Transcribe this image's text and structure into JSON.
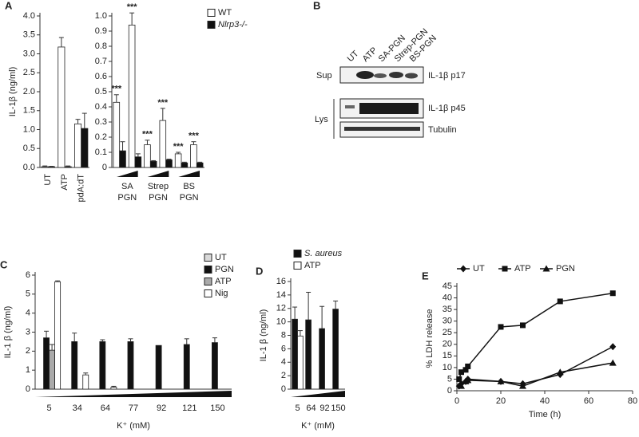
{
  "chart_data": [
    {
      "type": "bar",
      "label": "A",
      "ylabel": "IL-1β (ng/ml)",
      "categories": [
        "UT",
        "ATP",
        "pdA:dT"
      ],
      "xtick_rotation": -90,
      "series": [
        {
          "name": "WT",
          "color": "#ffffff",
          "values": [
            0.02,
            3.18,
            1.15
          ],
          "errors": [
            0.02,
            0.25,
            0.12
          ]
        },
        {
          "name": "Nlrp3-/-",
          "color": "#111111",
          "values": [
            0.02,
            0.02,
            1.03
          ],
          "errors": [
            0.01,
            0.02,
            0.4
          ]
        }
      ],
      "ylim": [
        0,
        4
      ],
      "yticks": [
        {
          "value": 0,
          "label": "0.0"
        },
        0.5,
        {
          "value": 1,
          "label": "1.0"
        },
        1.5,
        {
          "value": 2,
          "label": "2.0"
        },
        2.5,
        {
          "value": 3,
          "label": "3.0"
        },
        3.5,
        {
          "value": 4,
          "label": "4.0"
        }
      ]
    },
    {
      "type": "bar",
      "categories": [
        null,
        null,
        null,
        null,
        null,
        null
      ],
      "group_labels": [
        [
          "SA",
          "PGN"
        ],
        [
          "Strep",
          "PGN"
        ],
        [
          "BS",
          "PGN"
        ]
      ],
      "annotations": [
        "***",
        "***",
        "***",
        "***",
        "***",
        "***"
      ],
      "series": [
        {
          "name": "WT",
          "color": "#ffffff",
          "values": [
            0.43,
            0.94,
            0.15,
            0.31,
            0.09,
            0.15
          ],
          "errors": [
            0.05,
            0.08,
            0.03,
            0.08,
            0.01,
            0.02
          ]
        },
        {
          "name": "Nlrp3-/-",
          "color": "#111111",
          "values": [
            0.11,
            0.07,
            0.04,
            0.05,
            0.03,
            0.03
          ],
          "errors": [
            0.06,
            0.02,
            0.005,
            0.005,
            0.005,
            0.005
          ]
        }
      ],
      "ylim": [
        0,
        1
      ],
      "yticks": [
        0,
        0.1,
        0.2,
        0.3,
        0.4,
        0.5,
        0.6,
        0.7,
        0.8,
        0.9,
        {
          "value": 1,
          "label": "1.0"
        }
      ]
    },
    {
      "type": "bar",
      "label": "C",
      "ylabel": "IL-1 β (ng/ml)",
      "xlabel": "K⁺ (mM)",
      "categories": [
        "5",
        "34",
        "64",
        "77",
        "92",
        "121",
        "150"
      ],
      "series": [
        {
          "name": "UT",
          "color": "#d9d9d9",
          "values": [
            0,
            0,
            0,
            0,
            0,
            0,
            0
          ],
          "errors": [
            null,
            null,
            null,
            null,
            null,
            null,
            null
          ]
        },
        {
          "name": "PGN",
          "color": "#111111",
          "values": [
            2.7,
            2.5,
            2.5,
            2.5,
            2.3,
            2.35,
            2.45
          ],
          "errors": [
            0.35,
            0.45,
            0.1,
            0.15,
            null,
            0.3,
            0.25
          ]
        },
        {
          "name": "ATP",
          "color": "#aaaaaa",
          "values": [
            2.05,
            null,
            null,
            null,
            null,
            null,
            null
          ],
          "errors": [
            0.3,
            null,
            null,
            null,
            null,
            null,
            null
          ]
        },
        {
          "name": "Nig",
          "color": "#ffffff",
          "values": [
            5.65,
            0.75,
            0.1,
            null,
            null,
            null,
            null
          ],
          "errors": [
            0.05,
            0.1,
            0.05,
            null,
            null,
            null,
            null
          ]
        }
      ],
      "ylim": [
        0,
        6
      ],
      "yticks": [
        0,
        1,
        2,
        3,
        4,
        5,
        6
      ]
    },
    {
      "type": "bar",
      "label": "D",
      "ylabel": "IL-1 β (ng/ml)",
      "xlabel": "K⁺ (mM)",
      "categories": [
        "5",
        "64",
        "92",
        "150"
      ],
      "series": [
        {
          "name": "S. aureus",
          "color": "#111111",
          "values": [
            10.4,
            10.3,
            9,
            11.9
          ],
          "errors": [
            1.8,
            4.1,
            3.3,
            1.2
          ]
        },
        {
          "name": "ATP",
          "color": "#ffffff",
          "values": [
            7.9,
            null,
            null,
            null
          ],
          "errors": [
            0.8,
            null,
            null,
            null
          ]
        }
      ],
      "ylim": [
        0,
        16
      ],
      "yticks": [
        0,
        2,
        4,
        6,
        8,
        10,
        12,
        14,
        16
      ]
    },
    {
      "type": "line",
      "label": "E",
      "ylabel": "% LDH release",
      "xlabel": "Time (h)",
      "x": [
        1,
        2,
        4,
        5,
        20,
        30,
        47,
        71
      ],
      "series": [
        {
          "name": "UT",
          "color": "#111111",
          "marker": "diamond",
          "values": [
            2,
            3,
            4,
            5,
            4,
            3,
            7,
            19
          ]
        },
        {
          "name": "ATP",
          "color": "#111111",
          "marker": "square",
          "values": [
            5,
            8,
            9,
            10.5,
            27.5,
            28.2,
            38.5,
            42
          ]
        },
        {
          "name": "PGN",
          "color": "#111111",
          "marker": "triangle",
          "values": [
            null,
            2,
            4,
            4.5,
            4,
            2,
            8,
            12
          ]
        }
      ],
      "xlim": [
        0,
        80
      ],
      "xticks": [
        0,
        20,
        40,
        60,
        80
      ],
      "ylim": [
        0,
        45
      ],
      "yticks": [
        0,
        5,
        10,
        15,
        20,
        25,
        30,
        35,
        40,
        45
      ]
    }
  ],
  "blot": {
    "label": "B",
    "columns": [
      "UT",
      "ATP",
      "SA-PGN",
      "Strep-PGN",
      "BS-PGN"
    ],
    "rows": [
      "Sup",
      "Lys"
    ],
    "bands": [
      "IL-1β p17",
      "IL-1β p45",
      "Tubulin"
    ]
  }
}
